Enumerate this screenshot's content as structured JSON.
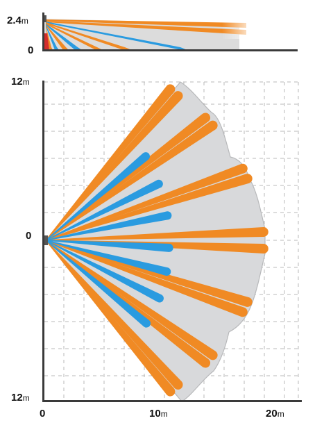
{
  "side_view": {
    "y_top_label": "2.4",
    "y_top_unit": "m",
    "y_bottom_label": "0"
  },
  "top_view": {
    "y_top_label": "12",
    "y_top_unit": "m",
    "y_mid_label": "0",
    "y_bottom_label": "12",
    "y_bottom_unit": "m",
    "x_labels": {
      "origin": "0",
      "ten": "10",
      "ten_unit": "m",
      "twenty": "20",
      "twenty_unit": "m"
    }
  },
  "colors": {
    "long_range_beam": "#f08a24",
    "short_range_beam": "#2a9be0",
    "creep_zone": "#d22c2c",
    "coverage_area": "#d8d9db",
    "coverage_outline": "#b7b8ba",
    "axis": "#3a3a3a",
    "grid": "#b8b8b8"
  },
  "beams": {
    "long_range_count": 12,
    "short_range_count": 7
  }
}
